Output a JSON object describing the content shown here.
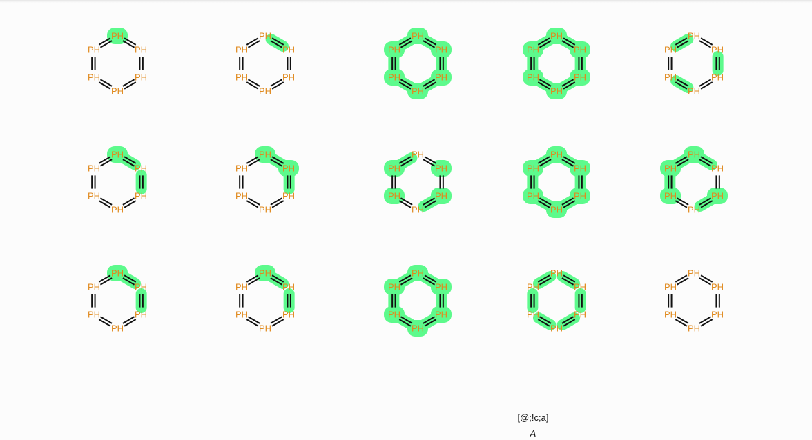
{
  "grid": {
    "atom_label": "PH",
    "atom_color": "#e08a1e",
    "bond_color": "#111111",
    "highlight_color": "#5dfa8c",
    "molecules": [
      {
        "atoms": [
          0
        ],
        "bonds": []
      },
      {
        "atoms": [],
        "bonds": [
          0
        ]
      },
      {
        "atoms": [
          0,
          1,
          2,
          3,
          4,
          5
        ],
        "bonds": [
          0,
          1,
          2,
          3,
          4,
          5
        ]
      },
      {
        "atoms": [
          0,
          1,
          2,
          3,
          4,
          5
        ],
        "bonds": [
          0,
          1,
          2,
          3,
          4,
          5
        ]
      },
      {
        "atoms": [],
        "bonds": [
          1,
          3,
          5
        ]
      },
      {
        "atoms": [
          0
        ],
        "bonds": [
          0,
          1
        ]
      },
      {
        "atoms": [
          0,
          1
        ],
        "bonds": [
          0,
          1
        ]
      },
      {
        "atoms": [
          1,
          2,
          4,
          5
        ],
        "bonds": [
          2,
          5
        ]
      },
      {
        "atoms": [
          0,
          1,
          2,
          3,
          4,
          5
        ],
        "bonds": [
          0,
          1,
          2,
          3,
          4,
          5
        ]
      },
      {
        "atoms": [
          0,
          2,
          4,
          5
        ],
        "bonds": [
          0,
          2,
          4,
          5
        ]
      },
      {
        "atoms": [
          0
        ],
        "bonds": [
          0,
          1
        ]
      },
      {
        "atoms": [
          0
        ],
        "bonds": [
          0,
          1
        ]
      },
      {
        "atoms": [
          0,
          1,
          2,
          3,
          4,
          5
        ],
        "bonds": [
          0,
          1,
          2,
          3,
          4,
          5
        ]
      },
      {
        "atoms": [],
        "bonds": [
          0,
          1,
          2,
          3,
          4,
          5
        ]
      },
      {
        "atoms": [],
        "bonds": []
      }
    ]
  },
  "query": {
    "smarts": "[@;!c;a]",
    "label": "A"
  }
}
